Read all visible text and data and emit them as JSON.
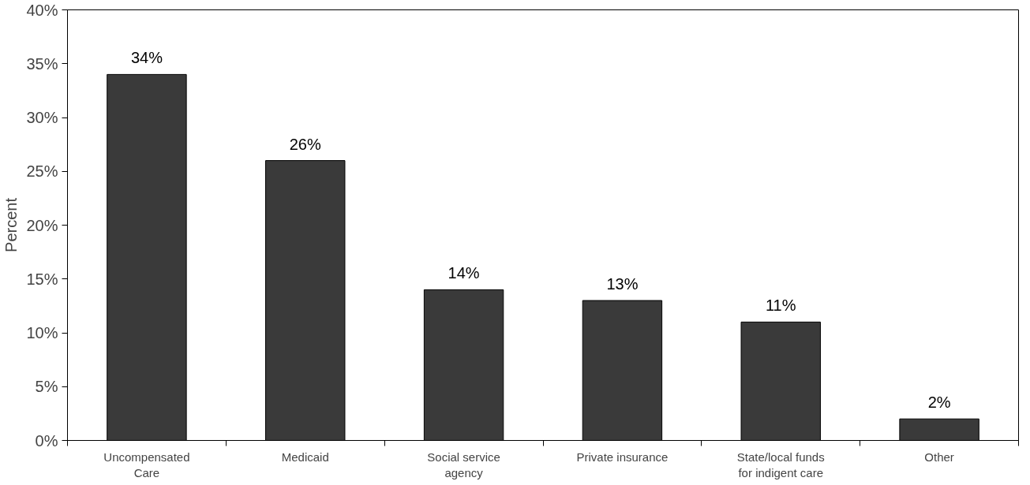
{
  "chart_data": {
    "type": "bar",
    "ylabel": "Percent",
    "categories": [
      "Uncompensated\nCare",
      "Medicaid",
      "Social service\nagency",
      "Private insurance",
      "State/local funds\nfor indigent care",
      "Other"
    ],
    "values": [
      34,
      26,
      14,
      13,
      11,
      2
    ],
    "value_labels": [
      "34%",
      "26%",
      "14%",
      "13%",
      "11%",
      "2%"
    ],
    "color": "#3a3a3a",
    "ylim": [
      0,
      40
    ],
    "yticks": [
      {
        "value": 0,
        "label": "0%"
      },
      {
        "value": 5,
        "label": "5%"
      },
      {
        "value": 10,
        "label": "10%"
      },
      {
        "value": 15,
        "label": "15%"
      },
      {
        "value": 20,
        "label": "20%"
      },
      {
        "value": 25,
        "label": "25%"
      },
      {
        "value": 30,
        "label": "30%"
      },
      {
        "value": 35,
        "label": "35%"
      },
      {
        "value": 40,
        "label": "40%"
      }
    ],
    "grid": false
  }
}
